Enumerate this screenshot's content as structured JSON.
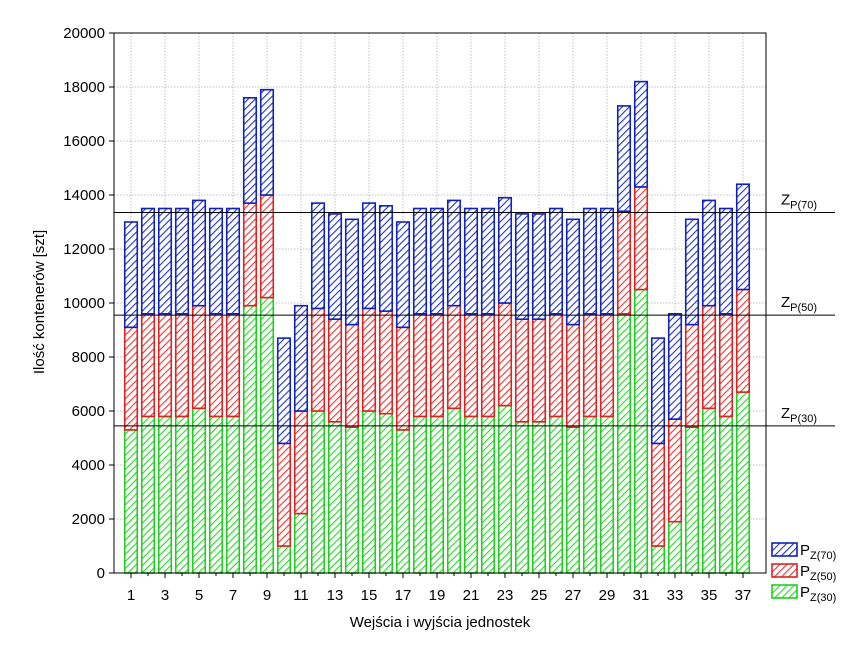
{
  "chart_data": {
    "type": "bar",
    "stacked": true,
    "title": "",
    "xlabel": "Wejścia i wyjścia jednostek",
    "ylabel": "Ilość kontenerów [szt]",
    "ylim": [
      0,
      20000
    ],
    "yticks": [
      0,
      2000,
      4000,
      6000,
      8000,
      10000,
      12000,
      14000,
      16000,
      18000,
      20000
    ],
    "xticks_shown": [
      1,
      3,
      5,
      7,
      9,
      11,
      13,
      15,
      17,
      19,
      21,
      23,
      25,
      27,
      29,
      31,
      33,
      35,
      37
    ],
    "grid": true,
    "legend_position": "bottom-right",
    "categories": [
      1,
      2,
      3,
      4,
      5,
      6,
      7,
      8,
      9,
      10,
      11,
      12,
      13,
      14,
      15,
      16,
      17,
      18,
      19,
      20,
      21,
      22,
      23,
      24,
      25,
      26,
      27,
      28,
      29,
      30,
      31,
      32,
      33,
      34,
      35,
      36,
      37
    ],
    "series": [
      {
        "name": "PZ(30)",
        "label_main": "P",
        "label_sub": "Z(30)",
        "color": "#22dd22",
        "stroke": "#22cc22",
        "values": [
          5300,
          5800,
          5800,
          5800,
          6100,
          5800,
          5800,
          9900,
          10200,
          1000,
          2200,
          6000,
          5600,
          5400,
          6000,
          5900,
          5300,
          5800,
          5800,
          6100,
          5800,
          5800,
          6200,
          5600,
          5600,
          5800,
          5400,
          5800,
          5800,
          9600,
          10500,
          1000,
          1900,
          5400,
          6100,
          5800,
          6700
        ]
      },
      {
        "name": "PZ(50)",
        "label_main": "P",
        "label_sub": "Z(50)",
        "color": "#ee3333",
        "stroke": "#dd2222",
        "values": [
          3800,
          3800,
          3800,
          3800,
          3800,
          3800,
          3800,
          3800,
          3800,
          3800,
          3800,
          3800,
          3800,
          3800,
          3800,
          3800,
          3800,
          3800,
          3800,
          3800,
          3800,
          3800,
          3800,
          3800,
          3800,
          3800,
          3800,
          3800,
          3800,
          3800,
          3800,
          3800,
          3800,
          3800,
          3800,
          3800,
          3800
        ]
      },
      {
        "name": "PZ(70)",
        "label_main": "P",
        "label_sub": "Z(70)",
        "color": "#2233cc",
        "stroke": "#1122bb",
        "values": [
          3900,
          3900,
          3900,
          3900,
          3900,
          3900,
          3900,
          3900,
          3900,
          3900,
          3900,
          3900,
          3900,
          3900,
          3900,
          3900,
          3900,
          3900,
          3900,
          3900,
          3900,
          3900,
          3900,
          3900,
          3900,
          3900,
          3900,
          3900,
          3900,
          3900,
          3900,
          3900,
          3900,
          3900,
          3900,
          3900,
          3900
        ]
      }
    ],
    "reference_lines": [
      {
        "name": "ZP(30)",
        "label_main": "Z",
        "label_sub": "P(30)",
        "value": 5450
      },
      {
        "name": "ZP(50)",
        "label_main": "Z",
        "label_sub": "P(50)",
        "value": 9550
      },
      {
        "name": "ZP(70)",
        "label_main": "Z",
        "label_sub": "P(70)",
        "value": 13350
      }
    ]
  }
}
